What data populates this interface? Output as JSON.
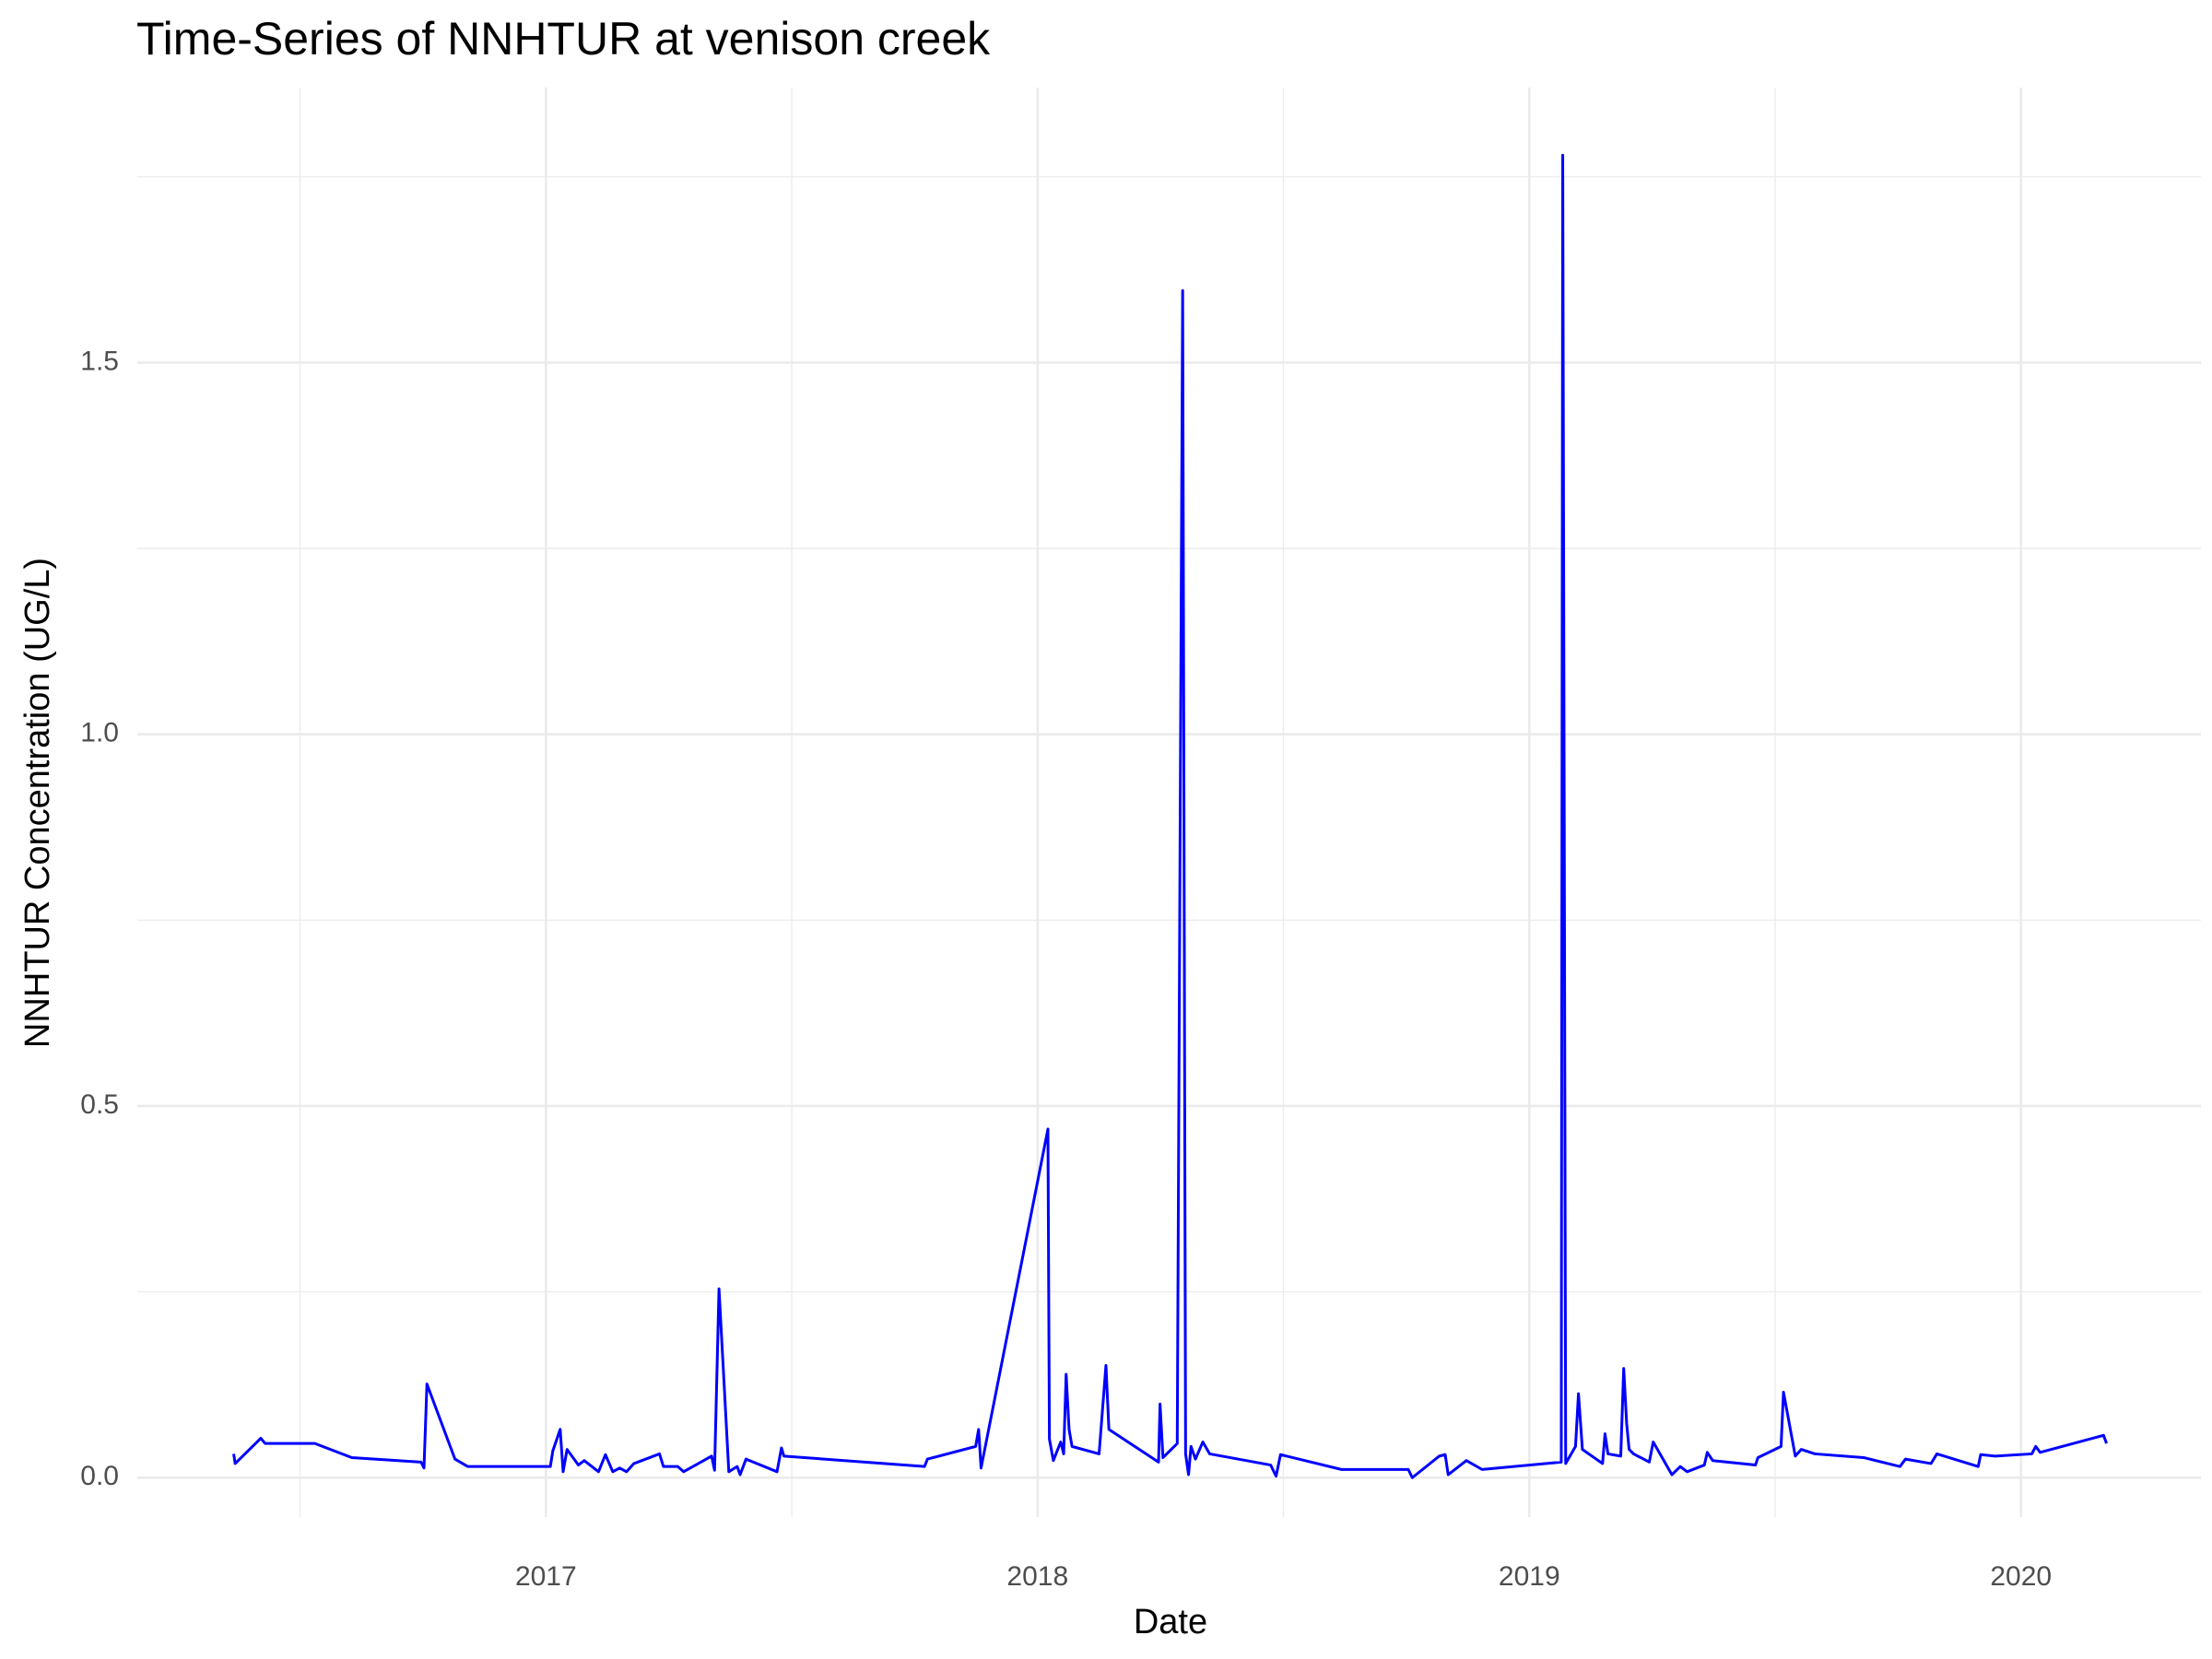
{
  "chart_data": {
    "type": "line",
    "title": "Time-Series of NNHTUR at venison creek",
    "x_label": "Date",
    "y_label": "NNHTUR Concentration (UG/L)",
    "color": "#0000ff",
    "grid": true,
    "xlim": [
      2016.169,
      2020.366
    ],
    "ylim": [
      -0.053,
      1.87
    ],
    "xticks": [
      2017,
      2018,
      2019,
      2020
    ],
    "yticks": [
      {
        "value": 0,
        "label": "0.0"
      },
      0.5,
      {
        "value": 1,
        "label": "1.0"
      },
      1.5
    ],
    "minor_xticks": [
      2016.5,
      2017.5,
      2018.5,
      2019.5
    ],
    "minor_yticks": [
      0.25,
      0.75,
      1.25,
      1.75
    ],
    "x": [
      2016.365,
      2016.368,
      2016.42,
      2016.429,
      2016.53,
      2016.605,
      2016.746,
      2016.752,
      2016.758,
      2016.815,
      2016.841,
      2017.009,
      2017.014,
      2017.029,
      2017.035,
      2017.043,
      2017.066,
      2017.078,
      2017.107,
      2017.121,
      2017.136,
      2017.15,
      2017.164,
      2017.179,
      2017.231,
      2017.239,
      2017.268,
      2017.28,
      2017.337,
      2017.343,
      2017.352,
      2017.372,
      2017.389,
      2017.395,
      2017.407,
      2017.47,
      2017.479,
      2017.484,
      2017.77,
      2017.776,
      2017.874,
      2017.88,
      2017.885,
      2018.021,
      2018.024,
      2018.032,
      2018.047,
      2018.053,
      2018.058,
      2018.064,
      2018.07,
      2018.125,
      2018.139,
      2018.145,
      2018.246,
      2018.249,
      2018.255,
      2018.284,
      2018.295,
      2018.301,
      2018.307,
      2018.312,
      2018.321,
      2018.336,
      2018.35,
      2018.474,
      2018.485,
      2018.494,
      2018.618,
      2018.754,
      2018.762,
      2018.817,
      2018.829,
      2018.835,
      2018.872,
      2018.904,
      2019.065,
      2019.068,
      2019.074,
      2019.094,
      2019.1,
      2019.108,
      2019.149,
      2019.154,
      2019.16,
      2019.186,
      2019.192,
      2019.198,
      2019.203,
      2019.212,
      2019.244,
      2019.252,
      2019.29,
      2019.307,
      2019.321,
      2019.356,
      2019.362,
      2019.373,
      2019.46,
      2019.465,
      2019.512,
      2019.517,
      2019.541,
      2019.553,
      2019.581,
      2019.68,
      2019.754,
      2019.765,
      2019.817,
      2019.829,
      2019.913,
      2019.918,
      2019.947,
      2020.022,
      2020.03,
      2020.039,
      2020.168,
      2020.174
    ],
    "values": [
      0.032,
      0.019,
      0.053,
      0.046,
      0.046,
      0.027,
      0.021,
      0.013,
      0.126,
      0.025,
      0.015,
      0.015,
      0.036,
      0.065,
      0.008,
      0.038,
      0.017,
      0.023,
      0.008,
      0.031,
      0.008,
      0.013,
      0.008,
      0.019,
      0.032,
      0.015,
      0.015,
      0.008,
      0.029,
      0.01,
      0.254,
      0.008,
      0.015,
      0.004,
      0.025,
      0.008,
      0.04,
      0.029,
      0.015,
      0.025,
      0.042,
      0.065,
      0.013,
      0.469,
      0.052,
      0.023,
      0.048,
      0.032,
      0.139,
      0.065,
      0.042,
      0.032,
      0.151,
      0.065,
      0.021,
      0.099,
      0.027,
      0.046,
      1.597,
      0.032,
      0.004,
      0.042,
      0.025,
      0.048,
      0.032,
      0.017,
      0.002,
      0.031,
      0.011,
      0.011,
      0.0,
      0.029,
      0.031,
      0.004,
      0.023,
      0.011,
      0.021,
      1.779,
      0.019,
      0.042,
      0.113,
      0.038,
      0.019,
      0.059,
      0.032,
      0.029,
      0.147,
      0.073,
      0.038,
      0.032,
      0.021,
      0.048,
      0.004,
      0.015,
      0.008,
      0.017,
      0.034,
      0.023,
      0.017,
      0.027,
      0.042,
      0.115,
      0.029,
      0.038,
      0.032,
      0.027,
      0.015,
      0.025,
      0.019,
      0.032,
      0.015,
      0.031,
      0.029,
      0.032,
      0.042,
      0.034,
      0.057,
      0.046
    ]
  }
}
